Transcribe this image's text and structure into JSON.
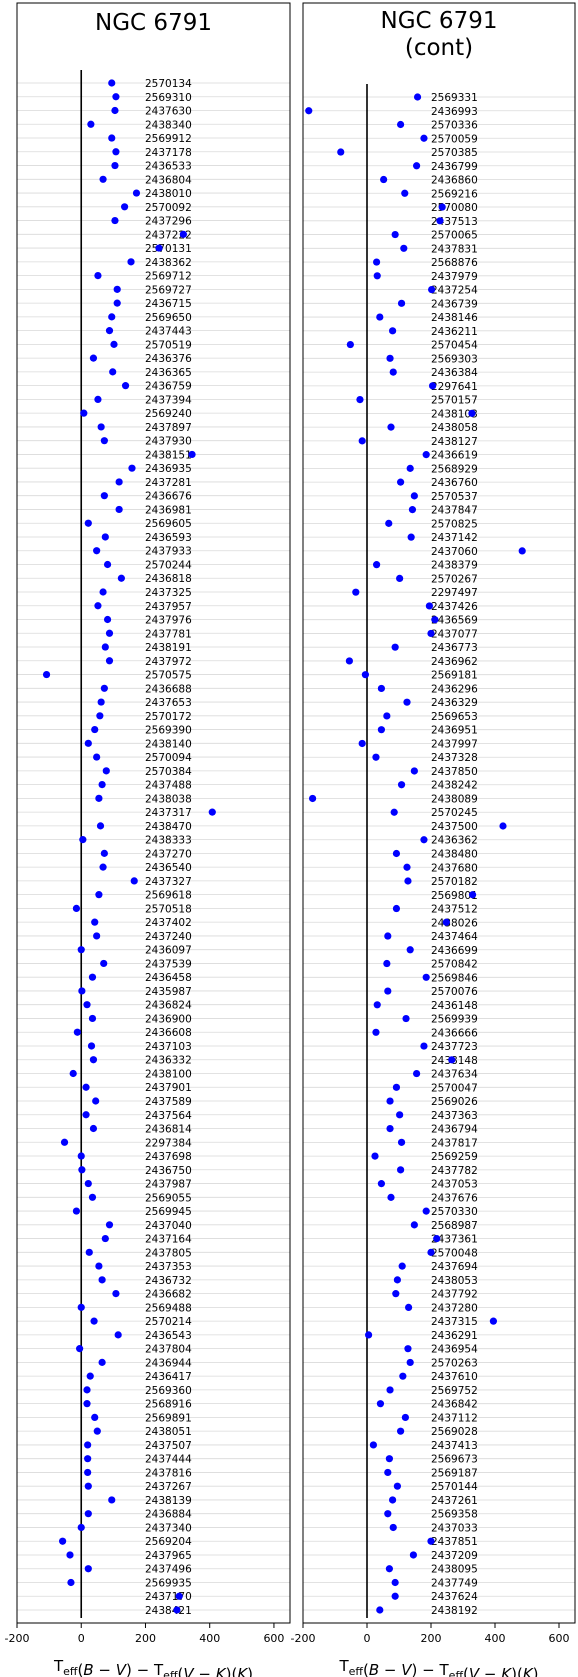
{
  "chart_data": [
    {
      "type": "scatter",
      "title": "NGC 6791",
      "title_lines": [
        "NGC 6791"
      ],
      "xlabel": "T_eff(B-V) - T_eff(V-K)(K)",
      "xlim": [
        -200,
        650
      ],
      "xticks": [
        -200,
        0,
        200,
        400,
        600
      ],
      "grid": "horizontal",
      "marker_color": "#0000ff",
      "series": [
        {
          "labels": [
            "2570134",
            "2569310",
            "2437630",
            "2438340",
            "2569912",
            "2437178",
            "2436533",
            "2436804",
            "2438010",
            "2570092",
            "2437296",
            "2437222",
            "2570131",
            "2438362",
            "2569712",
            "2569727",
            "2436715",
            "2569650",
            "2437443",
            "2570519",
            "2436376",
            "2436365",
            "2436759",
            "2437394",
            "2569240",
            "2437897",
            "2437930",
            "2438151",
            "2436935",
            "2437281",
            "2436676",
            "2436981",
            "2569605",
            "2436593",
            "2437933",
            "2570244",
            "2436818",
            "2437325",
            "2437957",
            "2437976",
            "2437781",
            "2438191",
            "2437972",
            "2570575",
            "2436688",
            "2437653",
            "2570172",
            "2569390",
            "2438140",
            "2570094",
            "2570384",
            "2437488",
            "2438038",
            "2437317",
            "2438470",
            "2438333",
            "2437270",
            "2436540",
            "2437327",
            "2569618",
            "2570518",
            "2437402",
            "2437240",
            "2436097",
            "2437539",
            "2436458",
            "2435987",
            "2436824",
            "2436900",
            "2436608",
            "2437103",
            "2436332",
            "2438100",
            "2437901",
            "2437589",
            "2437564",
            "2436814",
            "2297384",
            "2437698",
            "2436750",
            "2437987",
            "2569055",
            "2569945",
            "2437040",
            "2437164",
            "2437805",
            "2437353",
            "2436732",
            "2436682",
            "2569488",
            "2570214",
            "2436543",
            "2437804",
            "2436944",
            "2436417",
            "2569360",
            "2568916",
            "2569891",
            "2438051",
            "2437507",
            "2437444",
            "2437816",
            "2437267",
            "2438139",
            "2436884",
            "2437340",
            "2569204",
            "2437965",
            "2437496",
            "2569935",
            "2437170",
            "2438421"
          ],
          "values": [
            95,
            108,
            105,
            30,
            95,
            108,
            105,
            68,
            172,
            135,
            105,
            318,
            242,
            155,
            52,
            112,
            112,
            95,
            88,
            102,
            38,
            98,
            138,
            52,
            8,
            62,
            72,
            345,
            158,
            118,
            72,
            118,
            22,
            75,
            48,
            82,
            125,
            68,
            52,
            82,
            88,
            75,
            88,
            -108,
            72,
            62,
            58,
            42,
            22,
            48,
            78,
            65,
            55,
            408,
            60,
            5,
            72,
            68,
            165,
            55,
            -15,
            42,
            48,
            0,
            70,
            35,
            2,
            18,
            35,
            -12,
            32,
            38,
            -25,
            15,
            45,
            15,
            38,
            -52,
            0,
            2,
            22,
            35,
            -15,
            88,
            75,
            25,
            55,
            65,
            108,
            0,
            40,
            115,
            -5,
            65,
            28,
            18,
            18,
            42,
            50,
            20,
            20,
            20,
            22,
            95,
            22,
            0,
            -58,
            -35,
            22,
            -32,
            305,
            298
          ]
        }
      ]
    },
    {
      "type": "scatter",
      "title": "NGC 6791 (cont)",
      "title_lines": [
        "NGC 6791",
        "(cont)"
      ],
      "xlabel": "T_eff(B-V) - T_eff(V-K)(K)",
      "xlim": [
        -200,
        650
      ],
      "xticks": [
        -200,
        0,
        200,
        400,
        600
      ],
      "grid": "horizontal",
      "marker_color": "#0000ff",
      "series": [
        {
          "labels": [
            "2569331",
            "2436993",
            "2570336",
            "2570059",
            "2570385",
            "2436799",
            "2436860",
            "2569216",
            "2570080",
            "2437513",
            "2570065",
            "2437831",
            "2568876",
            "2437979",
            "2437254",
            "2436739",
            "2438146",
            "2436211",
            "2570454",
            "2569303",
            "2436384",
            "2297641",
            "2570157",
            "2438103",
            "2438058",
            "2438127",
            "2436619",
            "2568929",
            "2436760",
            "2570537",
            "2437847",
            "2570825",
            "2437142",
            "2437060",
            "2438379",
            "2570267",
            "2297497",
            "2437426",
            "2436569",
            "2437077",
            "2436773",
            "2436962",
            "2569181",
            "2436296",
            "2436329",
            "2569653",
            "2436951",
            "2437997",
            "2437328",
            "2437850",
            "2438242",
            "2438089",
            "2570245",
            "2437500",
            "2436362",
            "2438480",
            "2437680",
            "2570182",
            "2569801",
            "2437512",
            "2438026",
            "2437464",
            "2436699",
            "2570842",
            "2569846",
            "2570076",
            "2436148",
            "2569939",
            "2436666",
            "2437723",
            "2438148",
            "2437634",
            "2570047",
            "2569026",
            "2437363",
            "2436794",
            "2437817",
            "2569259",
            "2437782",
            "2437053",
            "2437676",
            "2570330",
            "2568987",
            "2437361",
            "2570048",
            "2437694",
            "2438053",
            "2437792",
            "2437280",
            "2437315",
            "2436291",
            "2436954",
            "2570263",
            "2437610",
            "2569752",
            "2436842",
            "2437112",
            "2569028",
            "2437413",
            "2569673",
            "2569187",
            "2570144",
            "2437261",
            "2569358",
            "2437033",
            "2437851",
            "2437209",
            "2438095",
            "2437749",
            "2437624",
            "2438192"
          ],
          "values": [
            158,
            -182,
            105,
            178,
            -82,
            155,
            52,
            118,
            235,
            228,
            88,
            115,
            30,
            32,
            202,
            108,
            40,
            80,
            -52,
            72,
            82,
            205,
            -22,
            328,
            75,
            -15,
            185,
            135,
            105,
            148,
            142,
            68,
            138,
            485,
            30,
            102,
            -35,
            195,
            212,
            200,
            88,
            -55,
            -5,
            45,
            125,
            62,
            45,
            -15,
            28,
            148,
            108,
            -170,
            85,
            425,
            178,
            92,
            125,
            128,
            330,
            92,
            248,
            65,
            135,
            62,
            185,
            65,
            32,
            122,
            28,
            178,
            265,
            155,
            92,
            72,
            102,
            72,
            108,
            25,
            105,
            45,
            75,
            185,
            148,
            218,
            200,
            110,
            95,
            90,
            130,
            395,
            5,
            128,
            135,
            112,
            72,
            42,
            120,
            105,
            20,
            70,
            65,
            95,
            80,
            65,
            82,
            200,
            145,
            70,
            88,
            88,
            40
          ]
        }
      ]
    }
  ]
}
